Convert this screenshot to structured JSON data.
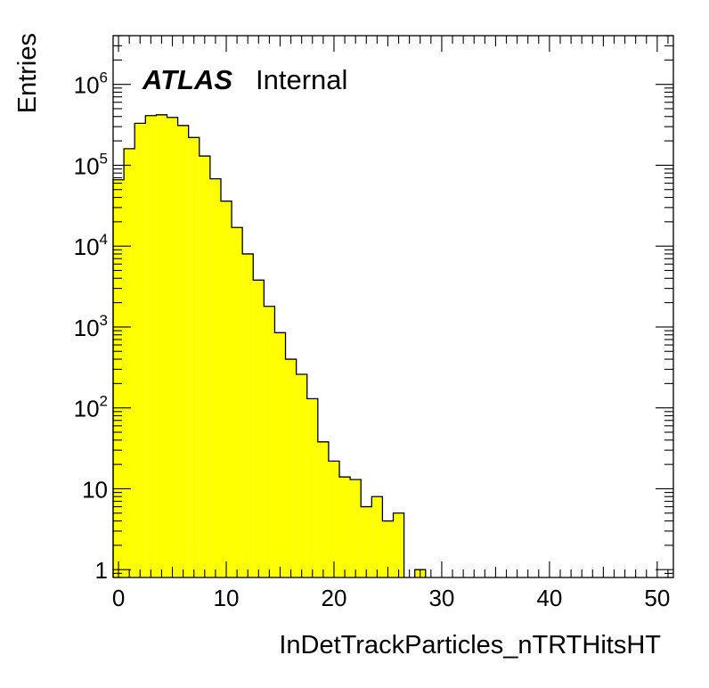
{
  "chart_data": {
    "type": "bar",
    "style": "histogram-step-filled",
    "xlabel": "InDetTrackParticles_nTRTHitsHT",
    "ylabel": "Entries",
    "label_brand": "ATLAS",
    "label_status": "Internal",
    "x_scale": "linear",
    "y_scale": "log",
    "xlim": [
      -0.5,
      51.5
    ],
    "ylim": [
      0.8,
      4000000
    ],
    "x_ticks": [
      0,
      10,
      20,
      30,
      40,
      50
    ],
    "x_tick_labels": [
      "0",
      "10",
      "20",
      "30",
      "40",
      "50"
    ],
    "y_ticks": [
      1,
      10,
      100,
      1000,
      10000,
      100000,
      1000000
    ],
    "y_tick_labels": [
      {
        "base": "1",
        "exp": ""
      },
      {
        "base": "10",
        "exp": ""
      },
      {
        "base": "10",
        "exp": "2"
      },
      {
        "base": "10",
        "exp": "3"
      },
      {
        "base": "10",
        "exp": "4"
      },
      {
        "base": "10",
        "exp": "5"
      },
      {
        "base": "10",
        "exp": "6"
      }
    ],
    "fill_color": "#ffff00",
    "line_color": "#000000",
    "grid": false,
    "bin_width": 1,
    "bins": [
      {
        "x": 0,
        "y": 66000
      },
      {
        "x": 1,
        "y": 160000
      },
      {
        "x": 2,
        "y": 330000
      },
      {
        "x": 3,
        "y": 410000
      },
      {
        "x": 4,
        "y": 420000
      },
      {
        "x": 5,
        "y": 390000
      },
      {
        "x": 6,
        "y": 310000
      },
      {
        "x": 7,
        "y": 220000
      },
      {
        "x": 8,
        "y": 130000
      },
      {
        "x": 9,
        "y": 68000
      },
      {
        "x": 10,
        "y": 36000
      },
      {
        "x": 11,
        "y": 17000
      },
      {
        "x": 12,
        "y": 8000
      },
      {
        "x": 13,
        "y": 3800
      },
      {
        "x": 14,
        "y": 1800
      },
      {
        "x": 15,
        "y": 850
      },
      {
        "x": 16,
        "y": 400
      },
      {
        "x": 17,
        "y": 260
      },
      {
        "x": 18,
        "y": 130
      },
      {
        "x": 19,
        "y": 38
      },
      {
        "x": 20,
        "y": 22
      },
      {
        "x": 21,
        "y": 14
      },
      {
        "x": 22,
        "y": 13
      },
      {
        "x": 23,
        "y": 6
      },
      {
        "x": 24,
        "y": 8
      },
      {
        "x": 25,
        "y": 4
      },
      {
        "x": 26,
        "y": 5
      },
      {
        "x": 28,
        "y": 1
      }
    ]
  }
}
